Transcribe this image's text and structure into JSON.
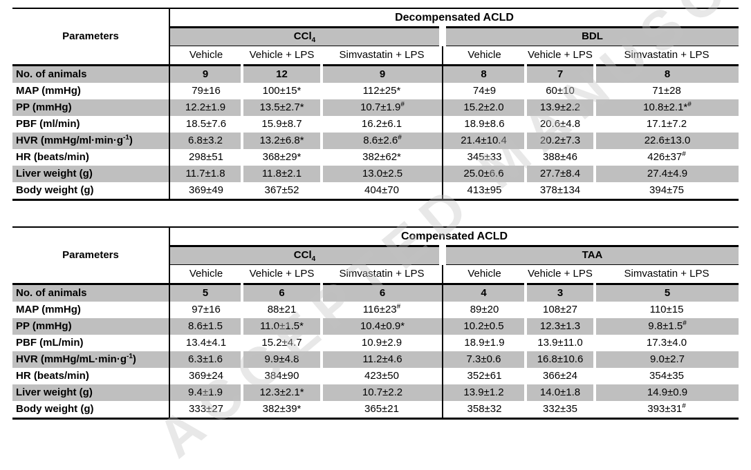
{
  "page": {
    "watermark_text": "ACCEPTED MANUSCRIPT"
  },
  "colors": {
    "band": "#bfbfbf",
    "border": "#000000",
    "text": "#000000",
    "watermark": "#c4c4c4"
  },
  "tables": [
    {
      "title": "Decompensated ACLD",
      "param_header": "Parameters",
      "groups": [
        {
          "label": "CCl_{4}"
        },
        {
          "label": "BDL"
        }
      ],
      "subcolumns": [
        "Vehicle",
        "Vehicle + LPS",
        "Simvastatin + LPS",
        "Vehicle",
        "Vehicle + LPS",
        "Simvastatin + LPS"
      ],
      "rows": [
        {
          "label": "No. of animals",
          "values": [
            "9",
            "12",
            "9",
            "8",
            "7",
            "8"
          ],
          "bold_values": true,
          "shaded": true
        },
        {
          "label": "MAP (mmHg)",
          "values": [
            "79±16",
            "100±15*",
            "112±25*",
            "74±9",
            "60±10",
            "71±28"
          ],
          "bold_values": false,
          "shaded": false
        },
        {
          "label": "PP (mmHg)",
          "values": [
            "12.2±1.9",
            "13.5±2.7*",
            "10.7±1.9^{#}",
            "15.2±2.0",
            "13.9±2.2",
            "10.8±2.1*^{#}"
          ],
          "bold_values": false,
          "shaded": true
        },
        {
          "label": "PBF (ml/min)",
          "values": [
            "18.5±7.6",
            "15.9±8.7",
            "16.2±6.1",
            "18.9±8.6",
            "20.6±4.8",
            "17.1±7.2"
          ],
          "bold_values": false,
          "shaded": false
        },
        {
          "label": "HVR (mmHg/ml·min·g^{-1})",
          "values": [
            "6.8±3.2",
            "13.2±6.8*",
            "8.6±2.6^{#}",
            "21.4±10.4",
            "20.2±7.3",
            "22.6±13.0"
          ],
          "bold_values": false,
          "shaded": true
        },
        {
          "label": "HR (beats/min)",
          "values": [
            "298±51",
            "368±29*",
            "382±62*",
            "345±33",
            "388±46",
            "426±37^{#}"
          ],
          "bold_values": false,
          "shaded": false
        },
        {
          "label": "Liver weight (g)",
          "values": [
            "11.7±1.8",
            "11.8±2.1",
            "13.0±2.5",
            "25.0±6.6",
            "27.7±8.4",
            "27.4±4.9"
          ],
          "bold_values": false,
          "shaded": true
        },
        {
          "label": "Body weight (g)",
          "values": [
            "369±49",
            "367±52",
            "404±70",
            "413±95",
            "378±134",
            "394±75"
          ],
          "bold_values": false,
          "shaded": false
        }
      ]
    },
    {
      "title": "Compensated ACLD",
      "param_header": "Parameters",
      "groups": [
        {
          "label": "CCl_{4}"
        },
        {
          "label": "TAA"
        }
      ],
      "subcolumns": [
        "Vehicle",
        "Vehicle + LPS",
        "Simvastatin + LPS",
        "Vehicle",
        "Vehicle + LPS",
        "Simvastatin + LPS"
      ],
      "rows": [
        {
          "label": "No. of animals",
          "values": [
            "5",
            "6",
            "6",
            "4",
            "3",
            "5"
          ],
          "bold_values": true,
          "shaded": true
        },
        {
          "label": "MAP (mmHg)",
          "values": [
            "97±16",
            "88±21",
            "116±23^{#}",
            "89±20",
            "108±27",
            "110±15"
          ],
          "bold_values": false,
          "shaded": false
        },
        {
          "label": "PP (mmHg)",
          "values": [
            "8.6±1.5",
            "11.0±1.5*",
            "10.4±0.9*",
            "10.2±0.5",
            "12.3±1.3",
            "9.8±1.5^{#}"
          ],
          "bold_values": false,
          "shaded": true
        },
        {
          "label": "PBF (mL/min)",
          "values": [
            "13.4±4.1",
            "15.2±4.7",
            "10.9±2.9",
            "18.9±1.9",
            "13.9±11.0",
            "17.3±4.0"
          ],
          "bold_values": false,
          "shaded": false
        },
        {
          "label": "HVR (mmHg/mL·min·g^{-1})",
          "values": [
            "6.3±1.6",
            "9.9±4.8",
            "11.2±4.6",
            "7.3±0.6",
            "16.8±10.6",
            "9.0±2.7"
          ],
          "bold_values": false,
          "shaded": true
        },
        {
          "label": "HR (beats/min)",
          "values": [
            "369±24",
            "384±90",
            "423±50",
            "352±61",
            "366±24",
            "354±35"
          ],
          "bold_values": false,
          "shaded": false
        },
        {
          "label": "Liver weight (g)",
          "values": [
            "9.4±1.9",
            "12.3±2.1*",
            "10.7±2.2",
            "13.9±1.2",
            "14.0±1.8",
            "14.9±0.9"
          ],
          "bold_values": false,
          "shaded": true
        },
        {
          "label": "Body weight (g)",
          "values": [
            "333±27",
            "382±39*",
            "365±21",
            "358±32",
            "332±35",
            "393±31^{#}"
          ],
          "bold_values": false,
          "shaded": false
        }
      ]
    }
  ]
}
